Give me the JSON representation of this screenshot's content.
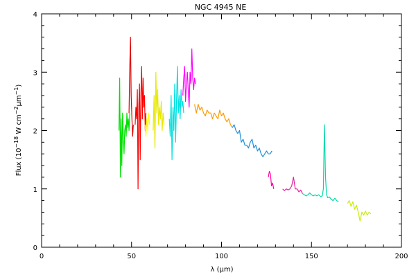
{
  "chart_data": {
    "type": "line",
    "title": "NGC 4945 NE",
    "xlabel": "λ (μm)",
    "ylabel_parts": {
      "prefix": "Flux (10",
      "exp1": "−18",
      "mid": " W cm",
      "exp2": "−2",
      "unit": "μm",
      "exp3": "−1",
      "suffix": ")"
    },
    "xlim": [
      0,
      200
    ],
    "ylim": [
      0,
      4
    ],
    "xticks": [
      0,
      50,
      100,
      150,
      200
    ],
    "yticks": [
      0,
      1,
      2,
      3,
      4
    ],
    "grid": false,
    "legend": "none",
    "series": [
      {
        "color": "#00e000",
        "x": [
          43.0,
          43.4,
          43.8,
          44.2,
          44.6,
          45.0,
          45.4,
          45.8,
          46.2,
          46.6,
          47.0,
          47.4,
          47.8,
          48.2,
          48.6,
          49.0
        ],
        "y": [
          2.0,
          2.9,
          1.2,
          2.2,
          1.4,
          2.3,
          1.9,
          1.6,
          2.0,
          2.1,
          1.9,
          2.3,
          2.05,
          2.2,
          2.0,
          2.3
        ]
      },
      {
        "color": "#e00000",
        "x": [
          48.6,
          49.0,
          49.4,
          49.8,
          50.2,
          50.6,
          51.0
        ],
        "y": [
          2.3,
          3.1,
          3.6,
          2.6,
          2.2,
          1.9,
          2.1
        ]
      },
      {
        "color": "#ff0000",
        "x": [
          52.0,
          52.4,
          52.8,
          53.2,
          53.6,
          54.0,
          54.4,
          54.8,
          55.2,
          55.6,
          56.0,
          56.4,
          56.8,
          57.2,
          57.6,
          58.0
        ],
        "y": [
          2.1,
          2.4,
          2.2,
          2.7,
          1.0,
          2.4,
          2.8,
          1.5,
          2.6,
          3.1,
          2.2,
          2.9,
          2.4,
          2.6,
          2.0,
          2.3
        ]
      },
      {
        "color": "#ffff00",
        "x": [
          57.5,
          58.0,
          58.5,
          59.0,
          59.5,
          60.0
        ],
        "y": [
          2.1,
          1.9,
          2.2,
          2.0,
          2.3,
          2.1
        ]
      },
      {
        "color": "#e8e800",
        "x": [
          62.0,
          62.5,
          63.0,
          63.5,
          64.0,
          64.5,
          65.0,
          65.5,
          66.0,
          66.5,
          67.0,
          67.5,
          68.0
        ],
        "y": [
          2.0,
          2.6,
          1.7,
          3.0,
          2.3,
          2.7,
          2.1,
          2.4,
          2.2,
          2.5,
          2.0,
          2.3,
          2.1
        ]
      },
      {
        "color": "#00e0e0",
        "x": [
          71.0,
          71.5,
          72.0,
          72.5,
          73.0,
          73.5,
          74.0,
          74.5,
          75.0,
          75.5,
          76.0,
          76.5,
          77.0,
          77.5,
          78.0,
          78.5,
          79.0
        ],
        "y": [
          2.2,
          1.9,
          2.6,
          1.5,
          2.4,
          2.0,
          2.8,
          1.8,
          2.5,
          3.1,
          2.3,
          2.6,
          2.2,
          2.7,
          2.4,
          2.5,
          2.3
        ]
      },
      {
        "color": "#ff00ff",
        "x": [
          78.5,
          79.0,
          79.5,
          80.0,
          80.5,
          81.0,
          81.5,
          82.0,
          82.5,
          83.0,
          83.5,
          84.0,
          84.5,
          85.0,
          85.5
        ],
        "y": [
          2.6,
          2.9,
          3.1,
          2.5,
          2.8,
          3.0,
          2.7,
          2.4,
          3.0,
          2.8,
          3.4,
          2.9,
          2.7,
          2.9,
          2.8
        ]
      },
      {
        "color": "#ff9900",
        "x": [
          85.0,
          86.0,
          87.0,
          88.0,
          89.0,
          90.0,
          91.0,
          92.0,
          93.0,
          94.0,
          95.0,
          96.0,
          97.0,
          98.0,
          99.0,
          100.0,
          101.0,
          102.0,
          103.0,
          104.0,
          105.0,
          106.0
        ],
        "y": [
          2.45,
          2.3,
          2.45,
          2.35,
          2.4,
          2.3,
          2.25,
          2.35,
          2.3,
          2.3,
          2.2,
          2.3,
          2.25,
          2.2,
          2.35,
          2.25,
          2.3,
          2.2,
          2.15,
          2.2,
          2.1,
          2.05
        ]
      },
      {
        "color": "#1f8fd8",
        "x": [
          106.0,
          107.0,
          108.0,
          109.0,
          110.0,
          111.0,
          112.0,
          113.0,
          114.0,
          115.0,
          116.0,
          117.0,
          118.0,
          119.0,
          120.0,
          121.0,
          122.0,
          123.0,
          124.0,
          125.0,
          126.0,
          127.0,
          128.0
        ],
        "y": [
          2.05,
          2.1,
          2.0,
          1.95,
          2.0,
          1.8,
          1.85,
          1.75,
          1.75,
          1.7,
          1.8,
          1.85,
          1.7,
          1.75,
          1.65,
          1.7,
          1.6,
          1.55,
          1.6,
          1.65,
          1.6,
          1.6,
          1.65
        ]
      },
      {
        "color": "#ff00aa",
        "x": [
          126.0,
          126.6,
          127.2,
          127.8,
          128.4,
          129.0
        ],
        "y": [
          1.2,
          1.3,
          1.25,
          1.05,
          1.1,
          1.0
        ]
      },
      {
        "color": "#e020a0",
        "x": [
          134.0,
          135.0,
          136.0,
          137.0,
          138.0,
          139.0,
          140.0,
          141.0,
          142.0,
          143.0,
          144.0,
          145.0
        ],
        "y": [
          1.0,
          0.97,
          1.0,
          0.98,
          1.0,
          1.05,
          1.2,
          1.0,
          1.0,
          0.95,
          0.98,
          0.92
        ]
      },
      {
        "color": "#00d8a8",
        "x": [
          145.0,
          146.0,
          147.0,
          148.0,
          149.0,
          150.0,
          151.0,
          152.0,
          153.0,
          154.0,
          155.0,
          156.0,
          156.6,
          157.2,
          157.8,
          158.4,
          159.0,
          160.0,
          161.0,
          162.0,
          163.0,
          164.0,
          165.0
        ],
        "y": [
          0.92,
          0.9,
          0.88,
          0.9,
          0.93,
          0.9,
          0.88,
          0.9,
          0.88,
          0.9,
          0.87,
          0.88,
          1.0,
          2.1,
          1.2,
          0.9,
          0.85,
          0.86,
          0.82,
          0.8,
          0.84,
          0.8,
          0.78
        ]
      },
      {
        "color": "#c8f000",
        "x": [
          170.0,
          171.0,
          172.0,
          173.0,
          174.0,
          175.0,
          176.0,
          177.0,
          178.0,
          179.0,
          180.0,
          181.0,
          182.0,
          183.0
        ],
        "y": [
          0.75,
          0.8,
          0.7,
          0.78,
          0.65,
          0.72,
          0.6,
          0.45,
          0.6,
          0.55,
          0.62,
          0.55,
          0.6,
          0.57
        ]
      }
    ]
  }
}
